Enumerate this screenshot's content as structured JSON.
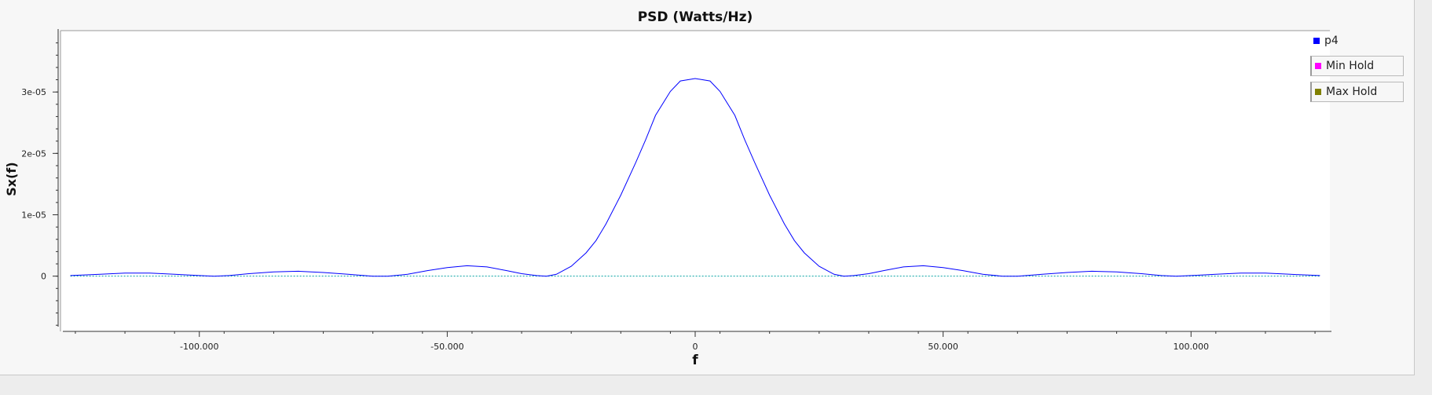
{
  "chart_data": {
    "type": "line",
    "title": "PSD (Watts/Hz)",
    "xlabel": "f",
    "ylabel": "Sx(f)",
    "xlim": [
      -128,
      128
    ],
    "ylim": [
      -9e-06,
      4e-05
    ],
    "x_ticks": [
      -100,
      -50,
      0,
      50,
      100
    ],
    "x_tick_labels": [
      "-100.000",
      "-50.000",
      "0",
      "50.000",
      "100.000"
    ],
    "y_ticks": [
      0,
      1e-05,
      2e-05,
      3e-05
    ],
    "y_tick_labels": [
      "0",
      "1e-05",
      "2e-05",
      "3e-05"
    ],
    "series": [
      {
        "name": "p4",
        "color": "#0000ff",
        "x": [
          -126,
          -120,
          -115,
          -110,
          -105,
          -100,
          -97,
          -94,
          -90,
          -85,
          -80,
          -75,
          -70,
          -65,
          -62,
          -58,
          -54,
          -50,
          -46,
          -42,
          -38,
          -35,
          -32,
          -30,
          -28,
          -25,
          -22,
          -20,
          -18,
          -15,
          -12,
          -10,
          -8,
          -5,
          -3,
          0,
          3,
          5,
          8,
          10,
          12,
          15,
          18,
          20,
          22,
          25,
          28,
          30,
          32,
          35,
          38,
          42,
          46,
          50,
          54,
          58,
          62,
          65,
          70,
          75,
          80,
          85,
          90,
          94,
          97,
          100,
          105,
          110,
          115,
          120,
          126
        ],
        "y": [
          1e-07,
          3e-07,
          5e-07,
          5e-07,
          3e-07,
          1e-07,
          0,
          1e-07,
          4e-07,
          7e-07,
          8e-07,
          6e-07,
          3e-07,
          0,
          0,
          3e-07,
          9e-07,
          1.4e-06,
          1.7e-06,
          1.5e-06,
          9e-07,
          4e-07,
          1e-07,
          0,
          3e-07,
          1.6e-06,
          3.8e-06,
          5.8e-06,
          8.5e-06,
          1.32e-05,
          1.85e-05,
          2.22e-05,
          2.62e-05,
          3.01e-05,
          3.18e-05,
          3.22e-05,
          3.18e-05,
          3.01e-05,
          2.62e-05,
          2.22e-05,
          1.85e-05,
          1.32e-05,
          8.5e-06,
          5.8e-06,
          3.8e-06,
          1.6e-06,
          3e-07,
          0,
          1e-07,
          4e-07,
          9e-07,
          1.5e-06,
          1.7e-06,
          1.4e-06,
          9e-07,
          3e-07,
          0,
          0,
          3e-07,
          6e-07,
          8e-07,
          7e-07,
          4e-07,
          1e-07,
          0,
          1e-07,
          3e-07,
          5e-07,
          5e-07,
          3e-07,
          1e-07
        ]
      },
      {
        "name": "Min Hold",
        "color": "#ff00ff",
        "values": []
      },
      {
        "name": "Max Hold",
        "color": "#808000",
        "values": []
      }
    ],
    "zero_line_color": "#00a0a0",
    "grid": false,
    "legend_position": "right"
  }
}
